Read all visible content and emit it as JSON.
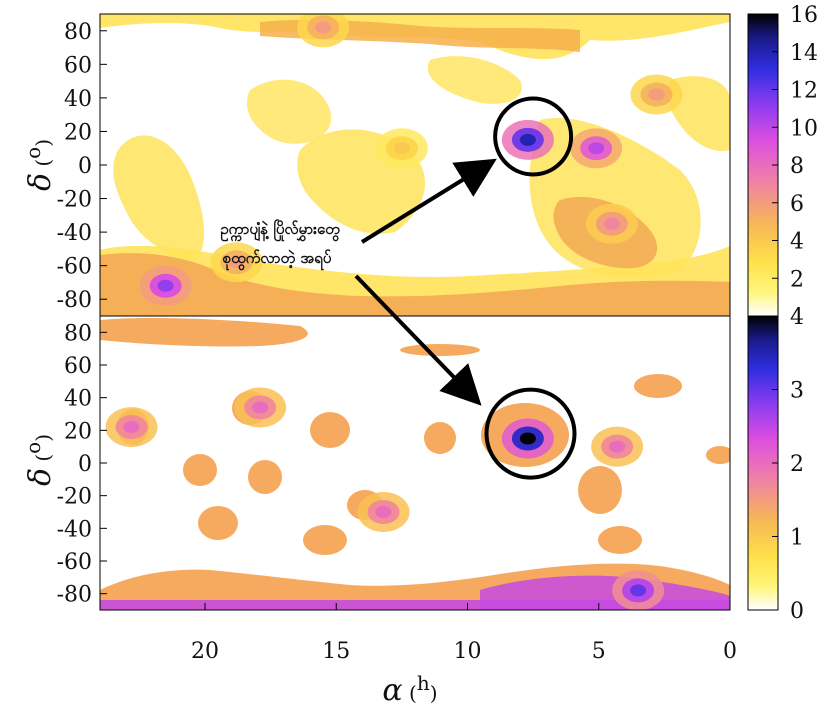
{
  "chart_data": [
    {
      "type": "heatmap",
      "panel": "top",
      "xlabel_symbol": "α",
      "xlabel_unit": "h",
      "ylabel_symbol": "δ",
      "ylabel_unit": "o",
      "xlim": [
        24,
        0
      ],
      "ylim": [
        -90,
        90
      ],
      "x_ticks": [],
      "y_ticks": [
        80,
        60,
        40,
        20,
        0,
        -20,
        -40,
        -60,
        -80
      ],
      "colorbar": {
        "min": 0,
        "max": 16,
        "ticks": [
          2,
          4,
          6,
          8,
          10,
          12,
          14,
          16
        ]
      },
      "hotspots": [
        {
          "ra": 7.7,
          "dec": 15,
          "value": 14
        },
        {
          "ra": 5.1,
          "dec": 10,
          "value": 10
        },
        {
          "ra": 21.5,
          "dec": -72,
          "value": 11
        },
        {
          "ra": 18.8,
          "dec": -58,
          "value": 6
        },
        {
          "ra": 4.5,
          "dec": -35,
          "value": 7
        },
        {
          "ra": 15.5,
          "dec": 82,
          "value": 6
        },
        {
          "ra": 2.8,
          "dec": 42,
          "value": 6
        },
        {
          "ra": 12.5,
          "dec": 10,
          "value": 4
        }
      ],
      "circle_center": {
        "ra": 7.5,
        "dec": 17
      },
      "annotation": [
        "ဥက္ကာပျံနဲ့ ပြိုလ်မွှားတွေ",
        "စုထွက်လာတဲ့ အရပ်"
      ]
    },
    {
      "type": "heatmap",
      "panel": "bottom",
      "xlabel_symbol": "α",
      "xlabel_unit": "h",
      "ylabel_symbol": "δ",
      "ylabel_unit": "o",
      "xlim": [
        24,
        0
      ],
      "ylim": [
        -90,
        90
      ],
      "x_ticks": [
        20,
        15,
        10,
        5,
        0
      ],
      "y_ticks": [
        80,
        60,
        40,
        20,
        0,
        -20,
        -40,
        -60,
        -80
      ],
      "colorbar": {
        "min": 0,
        "max": 4,
        "ticks": [
          0,
          1,
          2,
          3,
          4
        ]
      },
      "hotspots": [
        {
          "ra": 7.7,
          "dec": 15,
          "value": 4
        },
        {
          "ra": 3.5,
          "dec": -78,
          "value": 3
        },
        {
          "ra": 22.8,
          "dec": 22,
          "value": 2
        },
        {
          "ra": 17.9,
          "dec": 34,
          "value": 2
        },
        {
          "ra": 13.2,
          "dec": -30,
          "value": 2
        },
        {
          "ra": 4.3,
          "dec": 10,
          "value": 2
        }
      ],
      "circle_center": {
        "ra": 7.6,
        "dec": 18
      }
    }
  ]
}
